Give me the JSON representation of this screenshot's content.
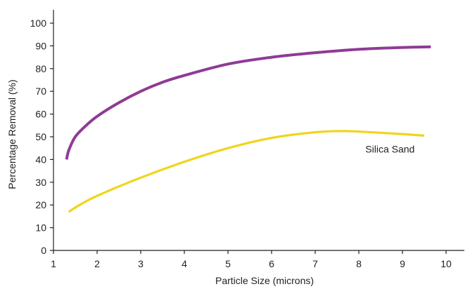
{
  "chart_data": {
    "type": "line",
    "xlabel": "Particle Size (microns)",
    "ylabel": "Percentage Removal (%)",
    "xlim": [
      1,
      10.5
    ],
    "ylim": [
      0,
      100
    ],
    "x_ticks": [
      "1",
      "2",
      "3",
      "4",
      "5",
      "6",
      "7",
      "8",
      "9",
      "10"
    ],
    "y_ticks": [
      "0",
      "10",
      "20",
      "30",
      "40",
      "50",
      "60",
      "70",
      "80",
      "90",
      "100"
    ],
    "grid": false,
    "series": [
      {
        "color": "#8e3b96",
        "points": [
          {
            "x": 1.3,
            "y": 40
          },
          {
            "x": 1.35,
            "y": 44
          },
          {
            "x": 1.5,
            "y": 50
          },
          {
            "x": 1.75,
            "y": 55
          },
          {
            "x": 2,
            "y": 59
          },
          {
            "x": 2.5,
            "y": 65
          },
          {
            "x": 3,
            "y": 70
          },
          {
            "x": 3.5,
            "y": 74
          },
          {
            "x": 4,
            "y": 77
          },
          {
            "x": 5,
            "y": 82
          },
          {
            "x": 6,
            "y": 85
          },
          {
            "x": 7,
            "y": 87
          },
          {
            "x": 8,
            "y": 88.5
          },
          {
            "x": 9,
            "y": 89.3
          },
          {
            "x": 9.65,
            "y": 89.6
          }
        ]
      },
      {
        "color": "#f0d51c",
        "points": [
          {
            "x": 1.35,
            "y": 17
          },
          {
            "x": 1.6,
            "y": 20
          },
          {
            "x": 2,
            "y": 24
          },
          {
            "x": 3,
            "y": 32
          },
          {
            "x": 4,
            "y": 39
          },
          {
            "x": 5,
            "y": 45
          },
          {
            "x": 6,
            "y": 49.5
          },
          {
            "x": 7,
            "y": 52
          },
          {
            "x": 7.6,
            "y": 52.5
          },
          {
            "x": 8,
            "y": 52.3
          },
          {
            "x": 9,
            "y": 51.2
          },
          {
            "x": 9.5,
            "y": 50.5
          }
        ]
      }
    ],
    "annotations": [
      {
        "text": "Silica Sand",
        "x": 8.15,
        "y": 43
      }
    ]
  }
}
